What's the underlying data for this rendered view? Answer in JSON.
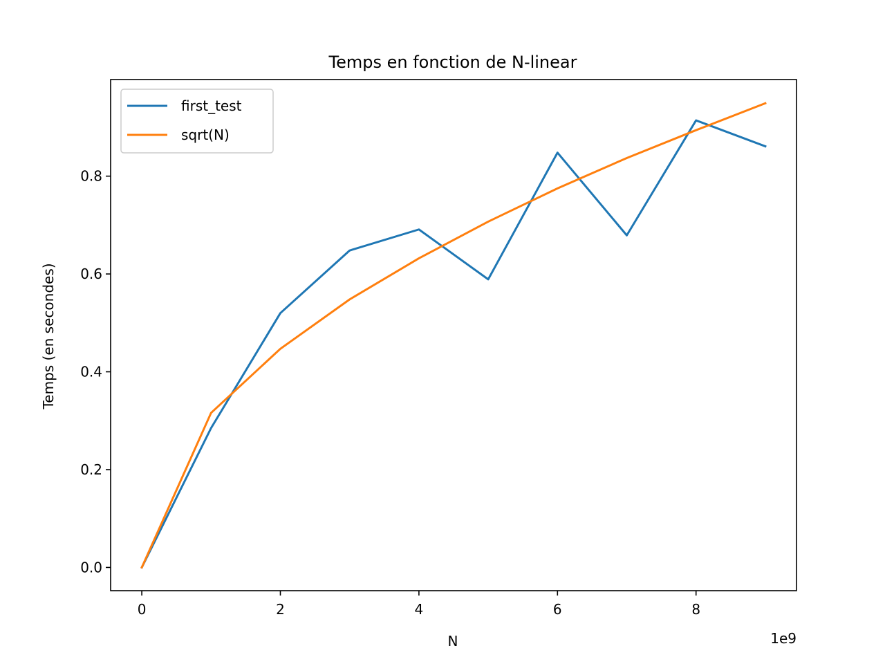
{
  "chart_data": {
    "type": "line",
    "title": "Temps en fonction de N-linear",
    "xlabel": "N",
    "ylabel": "Temps (en secondes)",
    "x_offset_text": "1e9",
    "x": [
      0,
      1,
      2,
      3,
      4,
      5,
      6,
      7,
      8,
      9
    ],
    "xlim": [
      -0.45,
      9.45
    ],
    "ylim": [
      -0.0475,
      0.9975
    ],
    "xticks": [
      0,
      2,
      4,
      6,
      8
    ],
    "xtick_labels": [
      "0",
      "2",
      "4",
      "6",
      "8"
    ],
    "yticks": [
      0.0,
      0.2,
      0.4,
      0.6,
      0.8
    ],
    "ytick_labels": [
      "0.0",
      "0.2",
      "0.4",
      "0.6",
      "0.8"
    ],
    "grid": false,
    "legend_position": "top-left",
    "series": [
      {
        "name": "first_test",
        "color": "#1f77b4",
        "values": [
          0.0,
          0.285,
          0.52,
          0.648,
          0.691,
          0.589,
          0.848,
          0.679,
          0.914,
          0.861
        ]
      },
      {
        "name": "sqrt(N)",
        "color": "#ff7f0e",
        "values": [
          0.0,
          0.316,
          0.447,
          0.548,
          0.632,
          0.707,
          0.775,
          0.837,
          0.894,
          0.949
        ]
      }
    ]
  }
}
